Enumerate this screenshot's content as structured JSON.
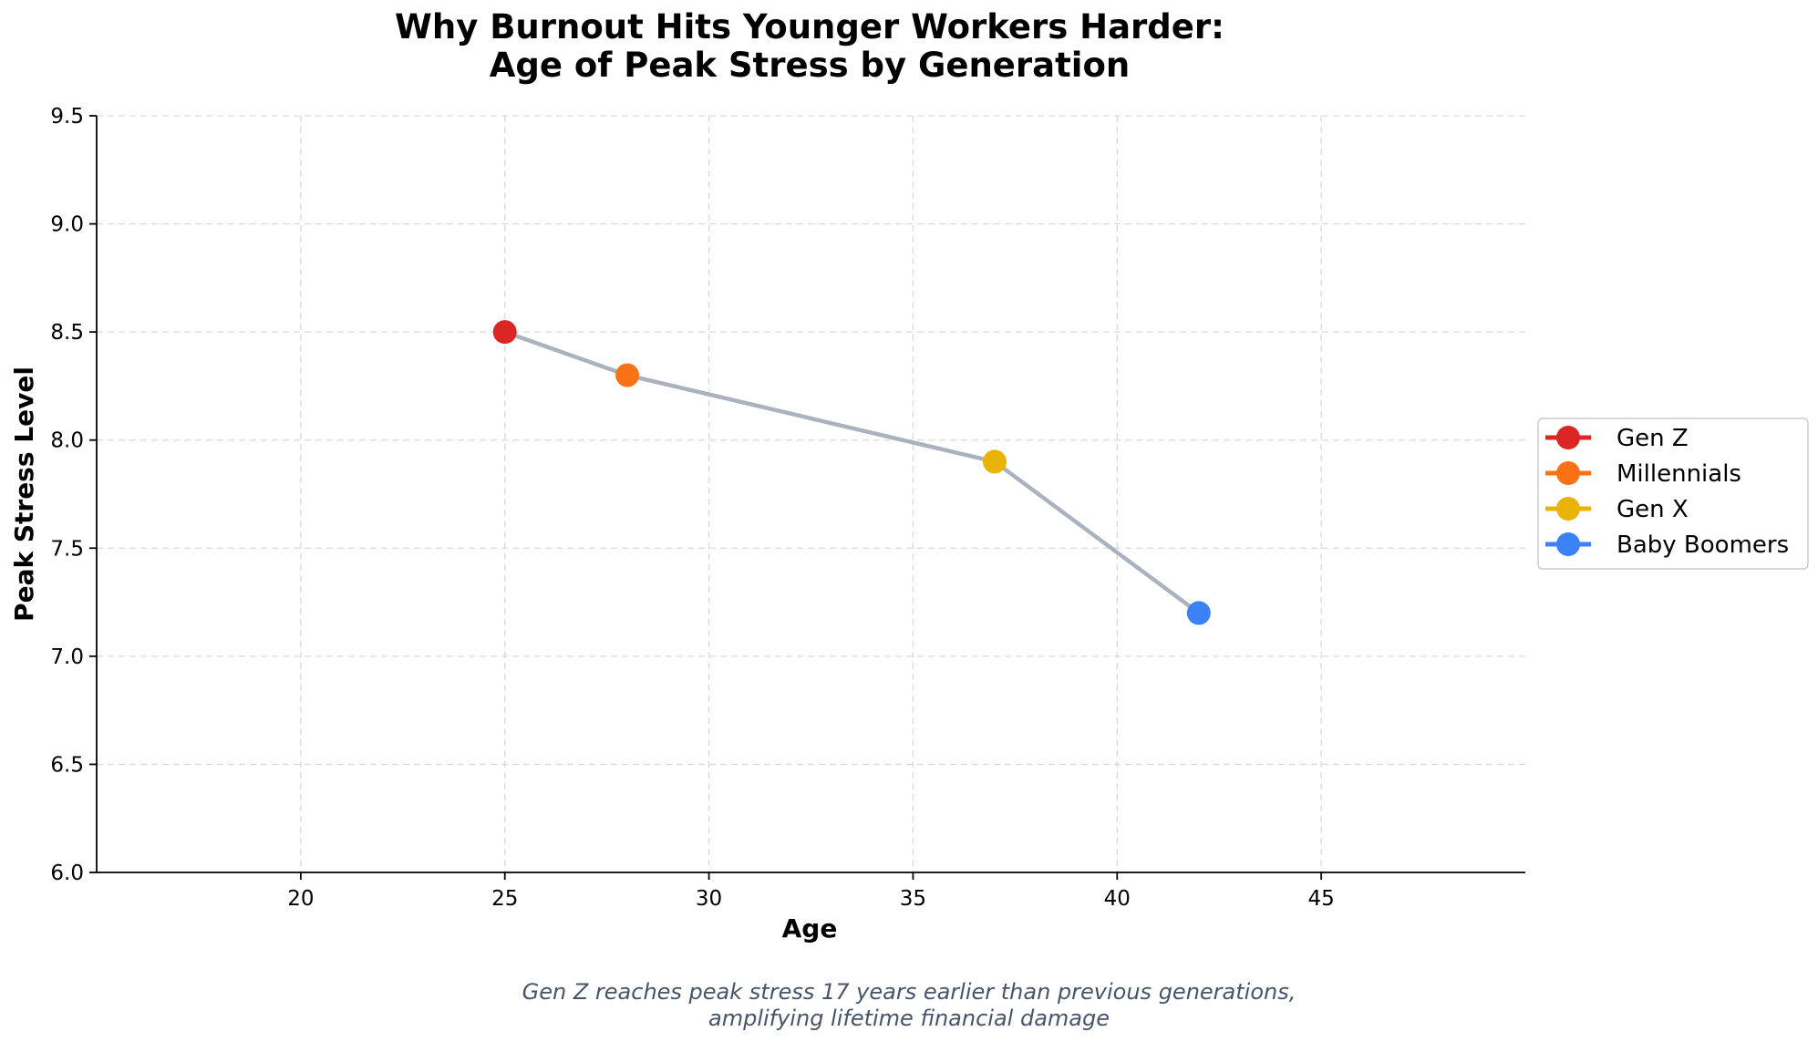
{
  "chart_data": {
    "type": "line",
    "title_lines": [
      "Why Burnout Hits Younger Workers Harder:",
      "Age of Peak Stress by Generation"
    ],
    "xlabel": "Age",
    "ylabel": "Peak Stress Level",
    "xlim": [
      15,
      50
    ],
    "ylim": [
      6.0,
      9.5
    ],
    "x_ticks": [
      20,
      25,
      30,
      35,
      40,
      45
    ],
    "x_tick_labels": [
      "20",
      "25",
      "30",
      "35",
      "40",
      "45"
    ],
    "y_ticks": [
      6.0,
      6.5,
      7.0,
      7.5,
      8.0,
      8.5,
      9.0,
      9.5
    ],
    "y_tick_labels": [
      "6.0",
      "6.5",
      "7.0",
      "7.5",
      "8.0",
      "8.5",
      "9.0",
      "9.5"
    ],
    "grid": true,
    "legend_position": "right",
    "connector_color": "#aab2bf",
    "series": [
      {
        "name": "Gen Z",
        "x": 25,
        "y": 8.5,
        "color": "#dc2626"
      },
      {
        "name": "Millennials",
        "x": 28,
        "y": 8.3,
        "color": "#f97316"
      },
      {
        "name": "Gen X",
        "x": 37,
        "y": 7.9,
        "color": "#eab308"
      },
      {
        "name": "Baby Boomers",
        "x": 42,
        "y": 7.2,
        "color": "#3b82f6"
      }
    ],
    "annotation_lines": [
      "Gen Z reaches peak stress 17 years earlier than previous generations,",
      "amplifying lifetime financial damage"
    ]
  }
}
